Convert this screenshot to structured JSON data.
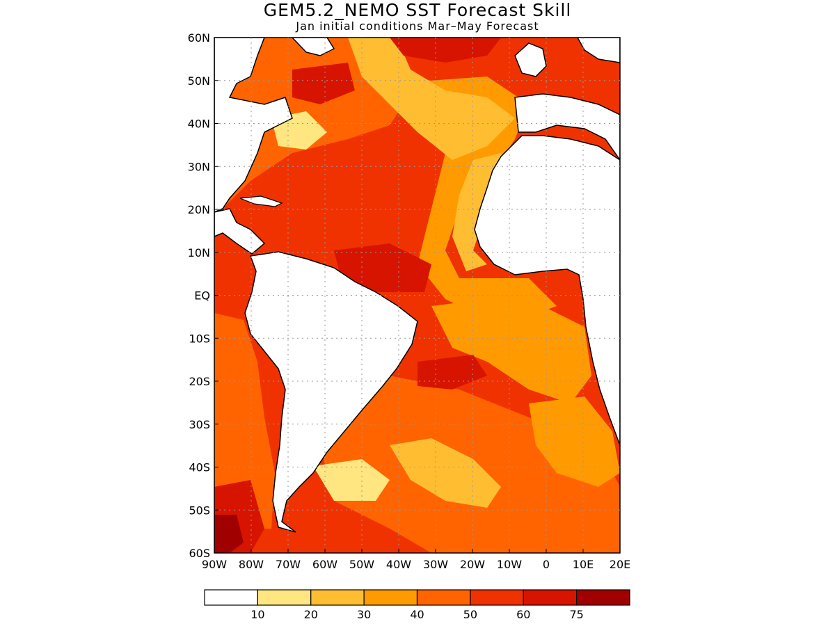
{
  "title": "GEM5.2_NEMO SST Forecast Skill",
  "subtitle": "Jan initial conditions  Mar–May Forecast",
  "map": {
    "lon_range": [
      -90,
      20
    ],
    "lat_range": [
      -60,
      60
    ],
    "x_tick_labels": [
      "90W",
      "80W",
      "70W",
      "60W",
      "50W",
      "40W",
      "30W",
      "20W",
      "10W",
      "0",
      "10E",
      "20E"
    ],
    "y_tick_labels": [
      "60N",
      "50N",
      "40N",
      "30N",
      "20N",
      "10N",
      "EQ",
      "10S",
      "20S",
      "30S",
      "40S",
      "50S",
      "60S"
    ],
    "grid": true,
    "land_color": "#ffffff",
    "coastline_color": "#000000"
  },
  "colorbar": {
    "colors": [
      "#ffffff",
      "#ffe680",
      "#ffbe32",
      "#ff9b00",
      "#ff6400",
      "#f03200",
      "#d71400",
      "#a00000"
    ],
    "labels": [
      "10",
      "20",
      "30",
      "40",
      "50",
      "60",
      "75"
    ]
  }
}
